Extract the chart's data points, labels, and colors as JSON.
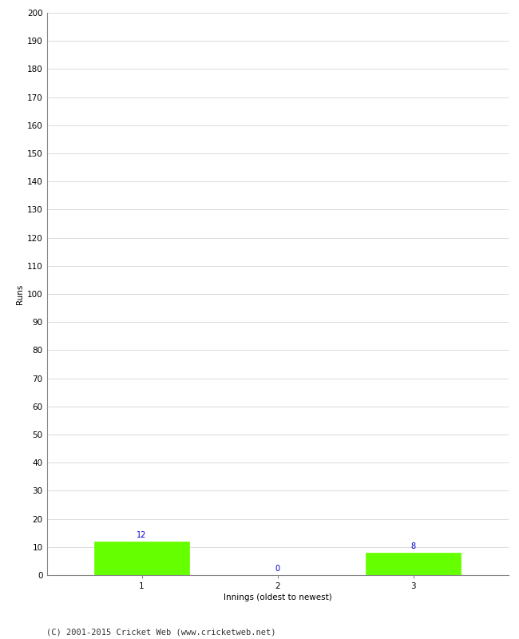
{
  "categories": [
    "1",
    "2",
    "3"
  ],
  "values": [
    12,
    0,
    8
  ],
  "bar_color": "#66ff00",
  "bar_edge_color": "#66ff00",
  "ylabel": "Runs",
  "xlabel": "Innings (oldest to newest)",
  "ylim": [
    0,
    200
  ],
  "yticks": [
    0,
    10,
    20,
    30,
    40,
    50,
    60,
    70,
    80,
    90,
    100,
    110,
    120,
    130,
    140,
    150,
    160,
    170,
    180,
    190,
    200
  ],
  "annotation_color": "#0000cc",
  "annotation_fontsize": 7,
  "footer": "(C) 2001-2015 Cricket Web (www.cricketweb.net)",
  "footer_fontsize": 7.5,
  "background_color": "#ffffff",
  "grid_color": "#cccccc",
  "tick_label_fontsize": 7.5,
  "axis_label_fontsize": 7.5,
  "bar_width": 0.7
}
